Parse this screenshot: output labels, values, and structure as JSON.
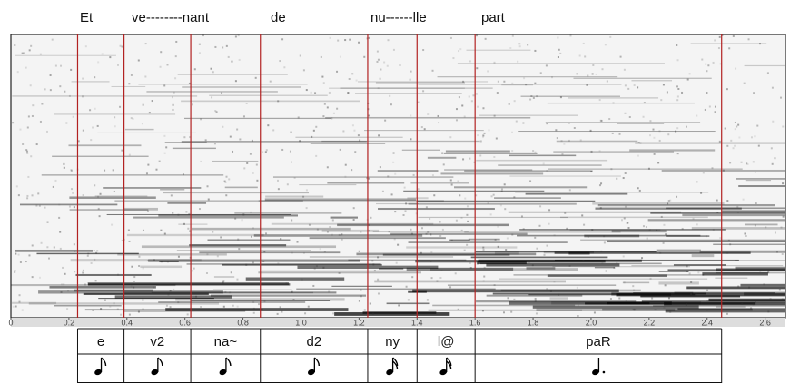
{
  "lyrics": [
    "Et",
    "ve--------nant",
    "de",
    "nu------lle",
    "part"
  ],
  "spectrogram": {
    "xlim": [
      0,
      2.67
    ],
    "xticks": [
      0,
      0.2,
      0.4,
      0.6,
      0.8,
      {
        "value": 1,
        "label": "1.0"
      },
      1.2,
      1.4,
      1.6,
      1.8,
      {
        "value": 2,
        "label": "2.0"
      },
      2.2,
      2.4,
      2.6
    ],
    "boundaries": [
      0.23,
      0.39,
      0.62,
      0.86,
      1.23,
      1.4,
      1.6,
      2.45
    ],
    "boundary_color": "#b22222"
  },
  "segments": [
    {
      "phoneme": "e",
      "note": "eighth"
    },
    {
      "phoneme": "v2",
      "note": "eighth"
    },
    {
      "phoneme": "na~",
      "note": "eighth"
    },
    {
      "phoneme": "d2",
      "note": "eighth"
    },
    {
      "phoneme": "ny",
      "note": "sixteenth"
    },
    {
      "phoneme": "l@",
      "note": "sixteenth"
    },
    {
      "phoneme": "paR",
      "note": "dotted-quarter"
    }
  ]
}
